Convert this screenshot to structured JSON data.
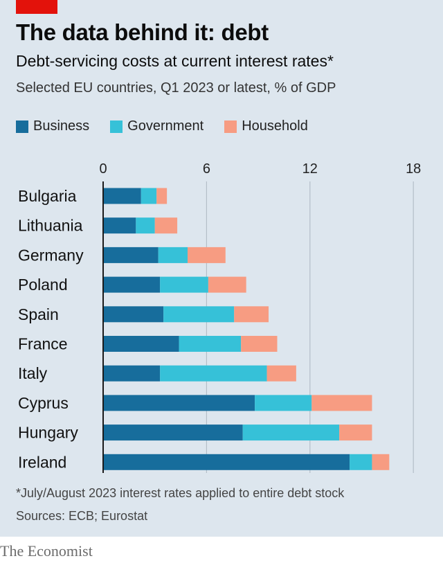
{
  "header": {
    "title": "The data behind it: debt",
    "subtitle": "Debt-servicing costs at current interest rates*",
    "subsubtitle": "Selected EU countries, Q1 2023 or latest, % of GDP"
  },
  "legend": [
    {
      "label": "Business",
      "color": "#176d9c"
    },
    {
      "label": "Government",
      "color": "#36c1d8"
    },
    {
      "label": "Household",
      "color": "#f79c82"
    }
  ],
  "colors": {
    "accent": "#e3120b",
    "background": "#dde6ee"
  },
  "chart_data": {
    "type": "bar",
    "orientation": "horizontal",
    "stacked": true,
    "categories": [
      "Bulgaria",
      "Lithuania",
      "Germany",
      "Poland",
      "Spain",
      "France",
      "Italy",
      "Cyprus",
      "Hungary",
      "Ireland"
    ],
    "series": [
      {
        "name": "Business",
        "values": [
          2.2,
          1.9,
          3.2,
          3.3,
          3.5,
          4.4,
          3.3,
          8.8,
          8.1,
          14.3
        ]
      },
      {
        "name": "Government",
        "values": [
          0.9,
          1.1,
          1.7,
          2.8,
          4.1,
          3.6,
          6.2,
          3.3,
          5.6,
          1.3
        ]
      },
      {
        "name": "Household",
        "values": [
          0.6,
          1.3,
          2.2,
          2.2,
          2.0,
          2.1,
          1.7,
          3.5,
          1.9,
          1.0
        ]
      }
    ],
    "xlim": [
      0,
      18
    ],
    "xticks": [
      0,
      6,
      12,
      18
    ],
    "grid": true,
    "legend_position": "top-left"
  },
  "footnote": "*July/August 2023 interest rates applied to entire debt stock",
  "source": "Sources: ECB; Eurostat",
  "brand": "The Economist"
}
